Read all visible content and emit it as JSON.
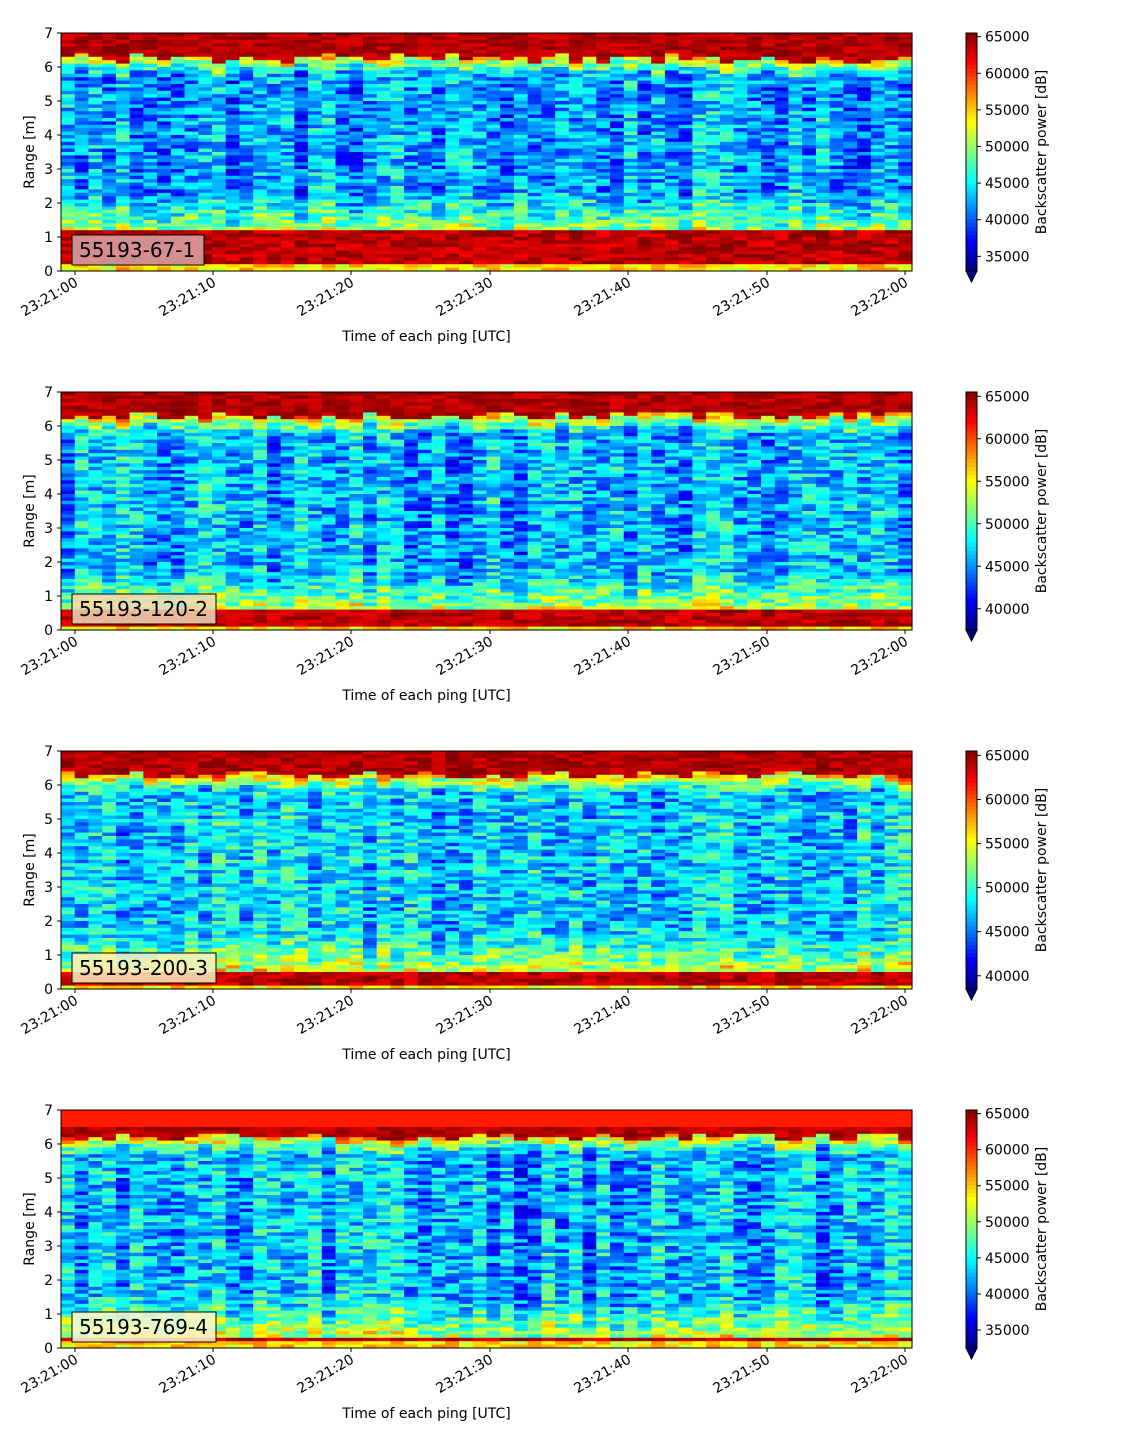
{
  "chart_data": [
    {
      "type": "heatmap",
      "panel_label": "55193-67-1",
      "label_box_color": "#d8a7a8",
      "xlabel": "Time of each ping [UTC]",
      "ylabel": "Range [m]",
      "x_ticks": [
        "23:21:00",
        "23:21:10",
        "23:21:20",
        "23:21:30",
        "23:21:40",
        "23:21:50",
        "23:22:00"
      ],
      "y_ticks": [
        "0",
        "1",
        "2",
        "3",
        "4",
        "5",
        "6",
        "7"
      ],
      "ylim": [
        0,
        7
      ],
      "colorbar": {
        "label": "Backscatter power [dB]",
        "colormap": "jet",
        "min": 33000,
        "max": 65500,
        "extend": "min",
        "ticks": [
          "35000",
          "40000",
          "45000",
          "50000",
          "55000",
          "60000",
          "65000"
        ]
      },
      "profile": {
        "bottom_band": [
          0.25,
          1.15
        ],
        "top_band": [
          6.25,
          7.0
        ],
        "mid_level": 0.28
      }
    },
    {
      "type": "heatmap",
      "panel_label": "55193-120-2",
      "label_box_color": "#f0d8b8",
      "xlabel": "Time of each ping [UTC]",
      "ylabel": "Range [m]",
      "x_ticks": [
        "23:21:00",
        "23:21:10",
        "23:21:20",
        "23:21:30",
        "23:21:40",
        "23:21:50",
        "23:22:00"
      ],
      "y_ticks": [
        "0",
        "1",
        "2",
        "3",
        "4",
        "5",
        "6",
        "7"
      ],
      "ylim": [
        0,
        7
      ],
      "colorbar": {
        "label": "Backscatter power [dB]",
        "colormap": "jet",
        "min": 37500,
        "max": 65500,
        "extend": "min",
        "ticks": [
          "40000",
          "45000",
          "50000",
          "55000",
          "60000",
          "65000"
        ]
      },
      "profile": {
        "bottom_band": [
          0.1,
          0.55
        ],
        "top_band": [
          6.3,
          7.0
        ],
        "mid_level": 0.3
      }
    },
    {
      "type": "heatmap",
      "panel_label": "55193-200-3",
      "label_box_color": "#fbeec0",
      "xlabel": "Time of each ping [UTC]",
      "ylabel": "Range [m]",
      "x_ticks": [
        "23:21:00",
        "23:21:10",
        "23:21:20",
        "23:21:30",
        "23:21:40",
        "23:21:50",
        "23:22:00"
      ],
      "y_ticks": [
        "0",
        "1",
        "2",
        "3",
        "4",
        "5",
        "6",
        "7"
      ],
      "ylim": [
        0,
        7
      ],
      "colorbar": {
        "label": "Backscatter power [dB]",
        "colormap": "jet",
        "min": 38500,
        "max": 65500,
        "extend": "min",
        "ticks": [
          "40000",
          "45000",
          "50000",
          "55000",
          "60000",
          "65000"
        ]
      },
      "profile": {
        "bottom_band": [
          0.1,
          0.45
        ],
        "top_band": [
          6.3,
          6.95
        ],
        "mid_level": 0.33
      }
    },
    {
      "type": "heatmap",
      "panel_label": "55193-769-4",
      "label_box_color": "#fbf6cf",
      "xlabel": "Time of each ping [UTC]",
      "ylabel": "Range [m]",
      "x_ticks": [
        "23:21:00",
        "23:21:10",
        "23:21:20",
        "23:21:30",
        "23:21:40",
        "23:21:50",
        "23:22:00"
      ],
      "y_ticks": [
        "0",
        "1",
        "2",
        "3",
        "4",
        "5",
        "6",
        "7"
      ],
      "ylim": [
        0,
        7
      ],
      "colorbar": {
        "label": "Backscatter power [dB]",
        "colormap": "jet",
        "min": 32500,
        "max": 65500,
        "extend": "min",
        "ticks": [
          "35000",
          "40000",
          "45000",
          "50000",
          "55000",
          "60000",
          "65000"
        ]
      },
      "profile": {
        "bottom_band": [
          0.15,
          0.3
        ],
        "top_band": [
          6.2,
          6.5
        ],
        "mid_level": 0.3
      }
    }
  ]
}
